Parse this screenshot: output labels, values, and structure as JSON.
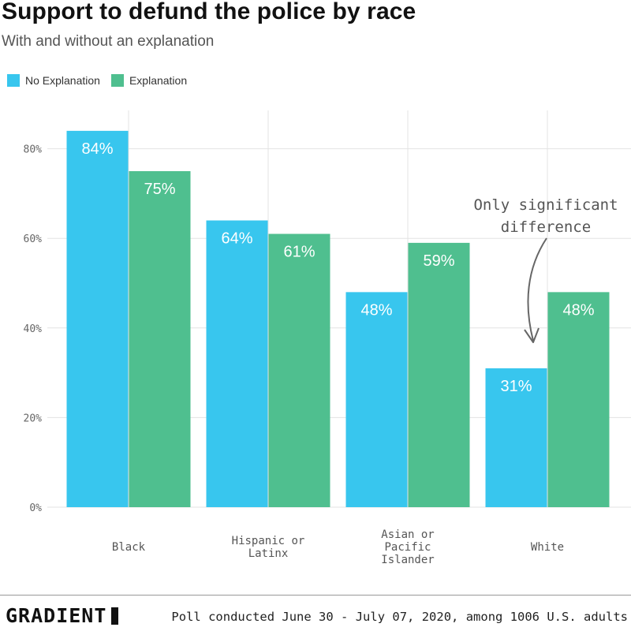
{
  "header": {
    "title": "Support to defund the police by race",
    "subtitle": "With and without an explanation"
  },
  "legend": [
    {
      "label": "No Explanation",
      "color": "#38c6ee"
    },
    {
      "label": "Explanation",
      "color": "#4fbf8f"
    }
  ],
  "annotation": {
    "lines": [
      "Only significant",
      "difference"
    ]
  },
  "footer": {
    "logo": "GRADIENT",
    "note": "Poll conducted June 30 - July 07, 2020, among 1006 U.S. adults"
  },
  "chart_data": {
    "type": "bar",
    "title": "Support to defund the police by race",
    "subtitle": "With and without an explanation",
    "categories": [
      [
        "Black"
      ],
      [
        "Hispanic or",
        "Latinx"
      ],
      [
        "Asian or",
        "Pacific",
        "Islander"
      ],
      [
        "White"
      ]
    ],
    "series": [
      {
        "name": "No Explanation",
        "color": "#38c6ee",
        "values": [
          84,
          64,
          48,
          31
        ],
        "labels": [
          "84%",
          "64%",
          "48%",
          "31%"
        ]
      },
      {
        "name": "Explanation",
        "color": "#4fbf8f",
        "values": [
          75,
          61,
          59,
          48
        ],
        "labels": [
          "75%",
          "61%",
          "59%",
          "48%"
        ]
      }
    ],
    "y_ticks": [
      0,
      20,
      40,
      60,
      80
    ],
    "y_tick_labels": [
      "0%",
      "20%",
      "40%",
      "60%",
      "80%"
    ],
    "ylim": [
      0,
      92
    ],
    "grid": true,
    "legend_position": "top-left",
    "xlabel": "",
    "ylabel": ""
  }
}
